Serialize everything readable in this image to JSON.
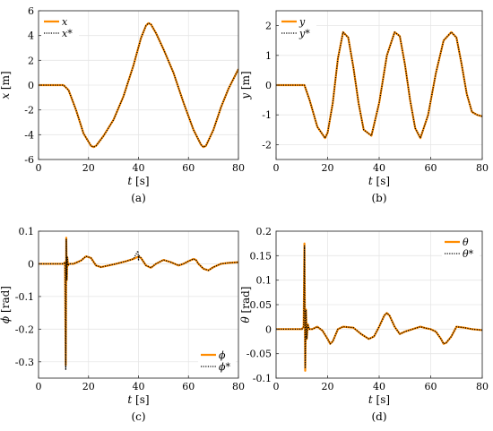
{
  "chart_data": [
    {
      "type": "line",
      "caption": "(a)",
      "ylabel_var": "x",
      "ylabel_unit": "[m]",
      "xlabel_var": "t",
      "xlabel_unit": "[s]",
      "xlim": [
        0,
        80
      ],
      "ylim": [
        -6,
        6
      ],
      "xticks": [
        0,
        20,
        40,
        60,
        80
      ],
      "yticks": [
        6,
        4,
        2,
        0,
        -2,
        -4,
        -6
      ],
      "grid": true,
      "legend_position": "top-left",
      "series": [
        {
          "name": "x",
          "style": "solid",
          "color": "#ff8c00",
          "x": [
            0,
            10,
            12,
            15,
            18,
            21,
            22,
            23,
            26,
            30,
            34,
            38,
            41,
            43,
            44,
            45,
            47,
            50,
            54,
            58,
            62,
            65,
            66,
            67,
            70,
            73,
            76,
            80
          ],
          "y": [
            0,
            0,
            -0.4,
            -2.0,
            -3.9,
            -4.9,
            -5.0,
            -4.9,
            -4.1,
            -2.8,
            -0.9,
            1.6,
            3.8,
            4.8,
            5.0,
            4.9,
            4.2,
            2.9,
            1.0,
            -1.4,
            -3.6,
            -4.8,
            -5.0,
            -4.9,
            -3.6,
            -1.8,
            -0.3,
            1.3
          ]
        },
        {
          "name": "x*",
          "style": "dotted",
          "color": "#000000",
          "x": [
            0,
            10,
            12,
            15,
            18,
            21,
            22,
            23,
            26,
            30,
            34,
            38,
            41,
            43,
            44,
            45,
            47,
            50,
            54,
            58,
            62,
            65,
            66,
            67,
            70,
            73,
            76,
            80
          ],
          "y": [
            0,
            0,
            -0.4,
            -2.0,
            -3.9,
            -4.9,
            -5.0,
            -4.9,
            -4.1,
            -2.8,
            -0.9,
            1.6,
            3.8,
            4.8,
            5.0,
            4.9,
            4.2,
            2.9,
            1.0,
            -1.4,
            -3.6,
            -4.8,
            -5.0,
            -4.9,
            -3.6,
            -1.8,
            -0.3,
            1.3
          ]
        }
      ]
    },
    {
      "type": "line",
      "caption": "(b)",
      "ylabel_var": "y",
      "ylabel_unit": "[m]",
      "xlabel_var": "t",
      "xlabel_unit": "[s]",
      "xlim": [
        0,
        80
      ],
      "ylim": [
        -2.5,
        2.5
      ],
      "xticks": [
        0,
        20,
        40,
        60,
        80
      ],
      "yticks": [
        2,
        1,
        0,
        -1,
        -2
      ],
      "grid": true,
      "legend_position": "top-left",
      "series": [
        {
          "name": "y",
          "style": "solid",
          "color": "#ff8c00",
          "x": [
            0,
            11,
            13,
            16,
            19,
            20,
            22,
            24,
            26,
            28,
            30,
            32,
            34,
            37,
            40,
            43,
            46,
            48,
            50,
            52,
            54,
            56,
            59,
            62,
            65,
            68,
            70,
            72,
            74,
            76,
            78,
            80
          ],
          "y": [
            0,
            0,
            -0.5,
            -1.4,
            -1.78,
            -1.6,
            -0.6,
            0.9,
            1.78,
            1.6,
            0.6,
            -0.6,
            -1.5,
            -1.7,
            -0.6,
            1.0,
            1.78,
            1.65,
            0.7,
            -0.5,
            -1.45,
            -1.78,
            -1.0,
            0.4,
            1.5,
            1.78,
            1.6,
            0.7,
            -0.3,
            -0.9,
            -1.0,
            -1.05
          ]
        },
        {
          "name": "y*",
          "style": "dotted",
          "color": "#000000",
          "x": [
            0,
            11,
            13,
            16,
            19,
            20,
            22,
            24,
            26,
            28,
            30,
            32,
            34,
            37,
            40,
            43,
            46,
            48,
            50,
            52,
            54,
            56,
            59,
            62,
            65,
            68,
            70,
            72,
            74,
            76,
            78,
            80
          ],
          "y": [
            0,
            0,
            -0.5,
            -1.4,
            -1.78,
            -1.6,
            -0.6,
            0.9,
            1.78,
            1.6,
            0.6,
            -0.6,
            -1.5,
            -1.7,
            -0.6,
            1.0,
            1.78,
            1.65,
            0.7,
            -0.5,
            -1.45,
            -1.78,
            -1.0,
            0.4,
            1.5,
            1.78,
            1.6,
            0.7,
            -0.3,
            -0.9,
            -1.0,
            -1.05
          ]
        }
      ]
    },
    {
      "type": "line",
      "caption": "(c)",
      "ylabel_var": "ϕ",
      "ylabel_unit": "[rad]",
      "xlabel_var": "t",
      "xlabel_unit": "[s]",
      "xlim": [
        0,
        80
      ],
      "ylim": [
        -0.35,
        0.1
      ],
      "xticks": [
        0,
        20,
        40,
        60,
        80
      ],
      "yticks": [
        0.1,
        0,
        -0.1,
        -0.2,
        -0.3
      ],
      "grid": true,
      "legend_position": "bottom-right",
      "series": [
        {
          "name": "ϕ",
          "style": "solid",
          "color": "#ff8c00",
          "x": [
            0,
            10,
            10.6,
            10.9,
            11.1,
            11.3,
            11.5,
            11.8,
            12.2,
            14,
            17,
            19,
            21,
            23,
            25,
            28,
            31,
            35,
            38,
            40,
            41,
            43,
            45,
            47,
            50,
            53,
            56,
            58,
            60,
            62,
            63,
            64,
            66,
            68,
            70,
            73,
            76,
            80
          ],
          "y": [
            0,
            0,
            0.005,
            -0.31,
            0.08,
            -0.05,
            0.02,
            -0.005,
            0,
            0,
            0.01,
            0.023,
            0.018,
            -0.005,
            -0.01,
            -0.005,
            0,
            0.008,
            0.015,
            0.022,
            0.018,
            -0.005,
            -0.012,
            0,
            0.012,
            0.005,
            -0.005,
            0,
            0.008,
            0.015,
            0.012,
            0,
            -0.015,
            -0.02,
            -0.01,
            0,
            0.003,
            0.005
          ]
        },
        {
          "name": "ϕ*",
          "style": "dotted",
          "color": "#000000",
          "x": [
            0,
            10,
            10.6,
            10.9,
            11.1,
            11.3,
            11.5,
            11.8,
            12.2,
            14,
            17,
            19,
            21,
            23,
            25,
            28,
            31,
            35,
            38,
            39.8,
            40,
            40.2,
            41,
            43,
            45,
            47,
            50,
            53,
            56,
            58,
            60,
            62,
            63,
            64,
            66,
            68,
            70,
            73,
            76,
            80
          ],
          "y": [
            0,
            0,
            0.005,
            -0.325,
            0.075,
            -0.05,
            0.02,
            -0.005,
            0,
            0,
            0.01,
            0.023,
            0.018,
            -0.005,
            -0.01,
            -0.005,
            0,
            0.008,
            0.015,
            0.04,
            0.01,
            0.025,
            0.018,
            -0.005,
            -0.012,
            0,
            0.012,
            0.005,
            -0.005,
            0,
            0.008,
            0.015,
            0.012,
            0,
            -0.015,
            -0.02,
            -0.01,
            0,
            0.003,
            0.005
          ]
        }
      ]
    },
    {
      "type": "line",
      "caption": "(d)",
      "ylabel_var": "θ",
      "ylabel_unit": "[rad]",
      "xlabel_var": "t",
      "xlabel_unit": "[s]",
      "xlim": [
        0,
        80
      ],
      "ylim": [
        -0.1,
        0.2
      ],
      "xticks": [
        0,
        20,
        40,
        60,
        80
      ],
      "yticks": [
        0.2,
        0.15,
        0.1,
        0.05,
        0,
        -0.05,
        -0.1
      ],
      "grid": true,
      "legend_position": "top-right",
      "series": [
        {
          "name": "θ",
          "style": "solid",
          "color": "#ff8c00",
          "x": [
            0,
            10,
            10.7,
            11.0,
            11.3,
            11.6,
            11.9,
            12.3,
            12.8,
            14,
            16,
            18,
            20,
            21,
            22,
            24,
            26,
            30,
            33,
            36,
            38,
            40,
            42,
            43,
            44,
            46,
            48,
            50,
            53,
            56,
            58,
            60,
            62,
            64,
            65,
            66,
            68,
            70,
            73,
            76,
            80
          ],
          "y": [
            0,
            0,
            0.005,
            0.175,
            -0.085,
            0.04,
            -0.02,
            0.01,
            0,
            0,
            0.005,
            -0.003,
            -0.02,
            -0.03,
            -0.025,
            0,
            0.005,
            0.003,
            -0.01,
            -0.02,
            -0.015,
            0.005,
            0.028,
            0.033,
            0.028,
            0.005,
            -0.01,
            -0.005,
            0,
            0.005,
            0.002,
            0,
            -0.005,
            -0.02,
            -0.03,
            -0.028,
            -0.015,
            0.005,
            0.003,
            0,
            -0.002
          ]
        },
        {
          "name": "θ*",
          "style": "dotted",
          "color": "#000000",
          "x": [
            0,
            10,
            10.7,
            11.0,
            11.3,
            11.6,
            11.9,
            12.3,
            12.8,
            14,
            16,
            18,
            20,
            21,
            22,
            24,
            26,
            30,
            33,
            36,
            38,
            40,
            42,
            43,
            44,
            46,
            48,
            50,
            53,
            56,
            58,
            60,
            62,
            64,
            65,
            66,
            68,
            70,
            73,
            76,
            80
          ],
          "y": [
            0,
            0,
            0.005,
            0.17,
            -0.08,
            0.04,
            -0.02,
            0.01,
            0,
            0,
            0.005,
            -0.003,
            -0.02,
            -0.03,
            -0.025,
            0,
            0.005,
            0.003,
            -0.01,
            -0.02,
            -0.015,
            0.005,
            0.028,
            0.033,
            0.028,
            0.005,
            -0.01,
            -0.005,
            0,
            0.005,
            0.002,
            0,
            -0.005,
            -0.02,
            -0.03,
            -0.028,
            -0.015,
            0.005,
            0.003,
            0,
            -0.002
          ]
        }
      ]
    }
  ]
}
